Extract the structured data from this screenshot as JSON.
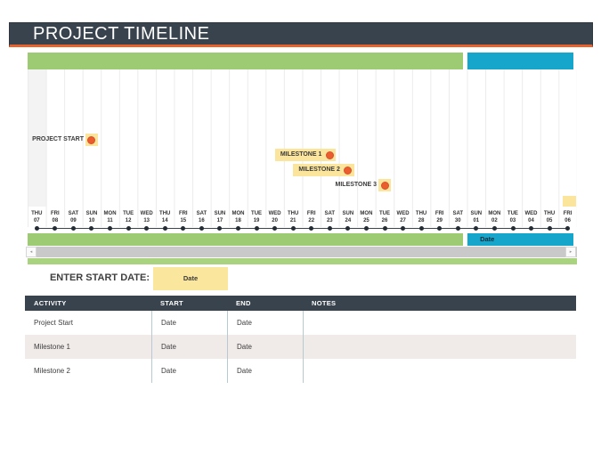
{
  "title": "PROJECT TIMELINE",
  "colors": {
    "header_bg": "#39434d",
    "accent_orange": "#e8622d",
    "bar_green": "#9dcb73",
    "bar_blue": "#16a6cb",
    "highlight_yellow": "#fbe59c",
    "milestone_dot": "#e95d2f",
    "row_shade": "#f0ebe9"
  },
  "chart_data": {
    "type": "timeline",
    "dates": [
      [
        "THU",
        "07"
      ],
      [
        "FRI",
        "08"
      ],
      [
        "SAT",
        "09"
      ],
      [
        "SUN",
        "10"
      ],
      [
        "MON",
        "11"
      ],
      [
        "TUE",
        "12"
      ],
      [
        "WED",
        "13"
      ],
      [
        "THU",
        "14"
      ],
      [
        "FRI",
        "15"
      ],
      [
        "SAT",
        "16"
      ],
      [
        "SUN",
        "17"
      ],
      [
        "MON",
        "18"
      ],
      [
        "TUE",
        "19"
      ],
      [
        "WED",
        "20"
      ],
      [
        "THU",
        "21"
      ],
      [
        "FRI",
        "22"
      ],
      [
        "SAT",
        "23"
      ],
      [
        "SUN",
        "24"
      ],
      [
        "MON",
        "25"
      ],
      [
        "TUE",
        "26"
      ],
      [
        "WED",
        "27"
      ],
      [
        "THU",
        "28"
      ],
      [
        "FRI",
        "29"
      ],
      [
        "SAT",
        "30"
      ],
      [
        "SUN",
        "01"
      ],
      [
        "MON",
        "02"
      ],
      [
        "TUE",
        "03"
      ],
      [
        "WED",
        "04"
      ],
      [
        "THU",
        "05"
      ],
      [
        "FRI",
        "06"
      ]
    ],
    "green_span": {
      "start_index": 0,
      "end_index": 23
    },
    "blue_span": {
      "start_index": 24,
      "end_index": 29,
      "label": "Date"
    },
    "milestones": [
      {
        "label": "PROJECT START",
        "date_index": 3,
        "boxed": false
      },
      {
        "label": "MILESTONE 1",
        "date_index": 16,
        "boxed": true
      },
      {
        "label": "MILESTONE 2",
        "date_index": 17,
        "boxed": true
      },
      {
        "label": "MILESTONE 3",
        "date_index": 19,
        "boxed": false
      }
    ]
  },
  "scrollbar": {
    "left_glyph": "◂",
    "right_glyph": "▸"
  },
  "start_date": {
    "label": "ENTER START DATE:",
    "value": "Date"
  },
  "table": {
    "headers": [
      "ACTIVITY",
      "START",
      "END",
      "NOTES"
    ],
    "rows": [
      [
        "Project Start",
        "Date",
        "Date",
        ""
      ],
      [
        "Milestone 1",
        "Date",
        "Date",
        ""
      ],
      [
        "Milestone 2",
        "Date",
        "Date",
        ""
      ]
    ]
  }
}
